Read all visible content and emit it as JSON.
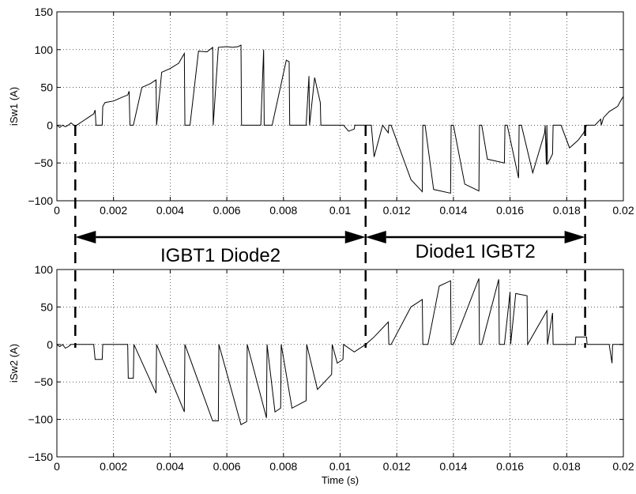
{
  "chart_data": [
    {
      "id": "top",
      "type": "line",
      "title": "",
      "xlabel": "",
      "ylabel": "iSw1 (A)",
      "xlim": [
        0,
        0.02
      ],
      "ylim": [
        -100,
        150
      ],
      "grid": true,
      "x_ticks": [
        0,
        0.002,
        0.004,
        0.006,
        0.008,
        0.01,
        0.012,
        0.014,
        0.016,
        0.018,
        0.02
      ],
      "x_tick_labels": [
        "0",
        "0.002",
        "0.004",
        "0.006",
        "0.008",
        "0.01",
        "0.012",
        "0.014",
        "0.016",
        "0.018",
        "0.02"
      ],
      "y_ticks": [
        -100,
        -50,
        0,
        50,
        100,
        150
      ],
      "y_tick_labels": [
        "−100",
        "−50",
        "0",
        "50",
        "100",
        "150"
      ],
      "series": [
        {
          "x": [
            0,
            0.0001,
            0.0002,
            0.0003,
            0.0004,
            0.0005,
            0.0006,
            0.00065,
            0.0007,
            0.0009,
            0.0011,
            0.0013,
            0.00135,
            0.00138,
            0.0016,
            0.00162,
            0.0017,
            0.002,
            0.0023,
            0.0025,
            0.00255,
            0.00258,
            0.0027,
            0.003,
            0.0033,
            0.0035,
            0.00352,
            0.0037,
            0.004,
            0.0043,
            0.0045,
            0.00452,
            0.0047,
            0.005,
            0.0053,
            0.0055,
            0.00552,
            0.0057,
            0.006,
            0.0062,
            0.0064,
            0.0065,
            0.00652,
            0.0072,
            0.0073,
            0.00732,
            0.0076,
            0.0081,
            0.0082,
            0.00822,
            0.0088,
            0.0089,
            0.00892,
            0.0091,
            0.0093,
            0.00932,
            0.01,
            0.0101,
            0.01012,
            0.0103,
            0.0105,
            0.01052,
            0.0108,
            0.0109,
            0.011,
            0.0111,
            0.0112,
            0.0115,
            0.0117,
            0.01172,
            0.0118,
            0.0125,
            0.0129,
            0.01292,
            0.013,
            0.0133,
            0.0139,
            0.01392,
            0.014,
            0.0144,
            0.0149,
            0.01492,
            0.015,
            0.0152,
            0.0158,
            0.01582,
            0.0159,
            0.0163,
            0.01632,
            0.0164,
            0.0168,
            0.01722,
            0.01724,
            0.01728,
            0.0173,
            0.01732,
            0.0175,
            0.01752,
            0.0178,
            0.0181,
            0.0184,
            0.0186,
            0.0187,
            0.0188,
            0.019,
            0.0192,
            0.01922,
            0.0193,
            0.0195,
            0.0198,
            0.0199,
            0.02
          ],
          "y": [
            0,
            -3,
            0,
            -2,
            0,
            3,
            0,
            -2,
            0,
            5,
            10,
            15,
            20,
            0,
            0,
            25,
            30,
            32,
            37,
            40,
            45,
            0,
            0,
            50,
            55,
            60,
            0,
            70,
            75,
            82,
            95,
            0,
            0,
            98,
            97,
            103,
            0,
            103,
            104,
            103,
            104,
            106,
            0,
            0,
            100,
            0,
            0,
            86,
            84,
            0,
            0,
            65,
            0,
            63,
            30,
            0,
            0,
            0,
            0,
            -8,
            -5,
            0,
            0,
            0,
            0,
            0,
            -42,
            0,
            -10,
            0,
            0,
            -72,
            -88,
            0,
            0,
            -85,
            -90,
            0,
            0,
            -78,
            -87,
            0,
            0,
            -45,
            -50,
            0,
            0,
            -70,
            0,
            0,
            -63,
            -10,
            0,
            -52,
            0,
            -52,
            -38,
            0,
            0,
            -30,
            -20,
            -10,
            0,
            0,
            0,
            8,
            0,
            10,
            18,
            25,
            32,
            38
          ]
        }
      ]
    },
    {
      "id": "bottom",
      "type": "line",
      "title": "",
      "xlabel": "Time (s)",
      "ylabel": "iSw2 (A)",
      "xlim": [
        0,
        0.02
      ],
      "ylim": [
        -150,
        100
      ],
      "grid": true,
      "x_ticks": [
        0,
        0.002,
        0.004,
        0.006,
        0.008,
        0.01,
        0.012,
        0.014,
        0.016,
        0.018,
        0.02
      ],
      "x_tick_labels": [
        "0",
        "0.002",
        "0.004",
        "0.006",
        "0.008",
        "0.01",
        "0.012",
        "0.014",
        "0.016",
        "0.018",
        "0.02"
      ],
      "y_ticks": [
        -150,
        -100,
        -50,
        0,
        50,
        100
      ],
      "y_tick_labels": [
        "−150",
        "−100",
        "−50",
        "0",
        "50",
        "100"
      ],
      "series": [
        {
          "x": [
            0,
            0.0001,
            0.0002,
            0.0003,
            0.0004,
            0.0005,
            0.0006,
            0.0009,
            0.0013,
            0.00135,
            0.0014,
            0.0016,
            0.00162,
            0.0025,
            0.00252,
            0.0027,
            0.00272,
            0.0035,
            0.00352,
            0.0045,
            0.00452,
            0.0055,
            0.0057,
            0.00572,
            0.0065,
            0.0067,
            0.00672,
            0.0074,
            0.00742,
            0.0077,
            0.0079,
            0.00792,
            0.0083,
            0.0088,
            0.00882,
            0.0092,
            0.0097,
            0.00972,
            0.0099,
            0.0101,
            0.01012,
            0.0105,
            0.0109,
            0.0112,
            0.0117,
            0.01172,
            0.0118,
            0.0125,
            0.0129,
            0.01292,
            0.0131,
            0.0135,
            0.0139,
            0.01392,
            0.014,
            0.0149,
            0.01492,
            0.015,
            0.0156,
            0.01562,
            0.0158,
            0.016,
            0.01602,
            0.0162,
            0.0166,
            0.01662,
            0.0173,
            0.01732,
            0.0175,
            0.01752,
            0.0179,
            0.0183,
            0.01832,
            0.0187,
            0.01872,
            0.0195,
            0.0196,
            0.01962,
            0.02
          ],
          "y": [
            0,
            -3,
            0,
            -5,
            -3,
            0,
            0,
            0,
            0,
            -20,
            -20,
            -20,
            0,
            0,
            -45,
            -45,
            0,
            -65,
            0,
            -90,
            0,
            -102,
            -102,
            0,
            -107,
            -103,
            0,
            -98,
            0,
            -90,
            -85,
            0,
            -85,
            -75,
            0,
            -60,
            -40,
            0,
            -25,
            -20,
            0,
            -10,
            0,
            10,
            30,
            0,
            0,
            50,
            60,
            0,
            0,
            78,
            85,
            0,
            0,
            88,
            0,
            0,
            87,
            0,
            0,
            70,
            0,
            68,
            65,
            0,
            45,
            0,
            42,
            0,
            0,
            0,
            10,
            10,
            0,
            0,
            -25,
            0,
            0
          ]
        }
      ]
    }
  ],
  "annotations": {
    "region1": {
      "label": "IGBT1 Diode2",
      "x_start": 0.00065,
      "x_end": 0.0109
    },
    "region2": {
      "label": "Diode1 IGBT2",
      "x_start": 0.0109,
      "x_end": 0.01865
    }
  }
}
